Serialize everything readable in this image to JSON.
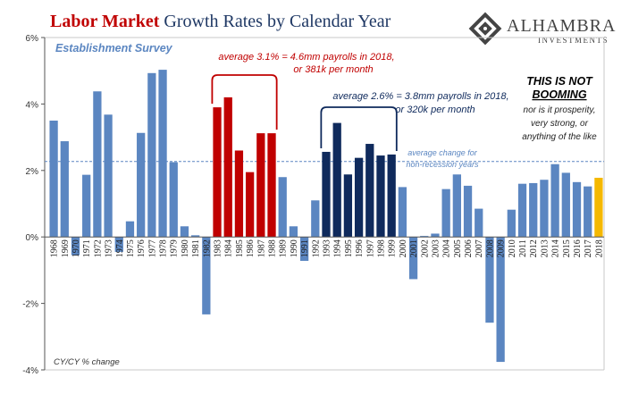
{
  "title": {
    "part1": "Labor Market",
    "part2": " Growth Rates by Calendar Year"
  },
  "logo": {
    "name": "ALHAMBRA",
    "tagline": "INVESTMENTS"
  },
  "subtitle": "Establishment Survey",
  "footnote": "CY/CY % change",
  "annotations": {
    "red_line1": "average 3.1% = 4.6mm payrolls in 2018,",
    "red_line2": "or 381k per month",
    "blue_line1": "average 2.6% = 3.8mm payrolls in 2018,",
    "blue_line2": "or 320k per month",
    "avg_line1": "average change for",
    "avg_line2": "non-recession years",
    "booming1": "THIS IS NOT",
    "booming2": "BOOMING",
    "booming3": "nor is it prosperity,",
    "booming4": "very strong, or",
    "booming5": "anything of the like"
  },
  "colors": {
    "default": "#5b86c1",
    "red": "#c00000",
    "navy": "#0f2a5c",
    "current": "#f5b800",
    "avg_line": "#5b86c1",
    "bracket_red": "#c00000",
    "bracket_navy": "#0f2a5c"
  },
  "chart_data": {
    "type": "bar",
    "categories": [
      "1968",
      "1969",
      "1970",
      "1971",
      "1972",
      "1973",
      "1974",
      "1975",
      "1976",
      "1977",
      "1978",
      "1979",
      "1980",
      "1981",
      "1982",
      "1983",
      "1984",
      "1985",
      "1986",
      "1987",
      "1988",
      "1989",
      "1990",
      "1991",
      "1992",
      "1993",
      "1994",
      "1995",
      "1996",
      "1997",
      "1998",
      "1999",
      "2000",
      "2001",
      "2002",
      "2003",
      "2004",
      "2005",
      "2006",
      "2007",
      "2008",
      "2009",
      "2010",
      "2011",
      "2012",
      "2013",
      "2014",
      "2015",
      "2016",
      "2017",
      "2018"
    ],
    "values": [
      3.5,
      2.88,
      -0.55,
      1.87,
      4.38,
      3.68,
      -0.45,
      0.47,
      3.13,
      4.93,
      5.03,
      2.25,
      0.32,
      0.05,
      -2.33,
      3.9,
      4.2,
      2.6,
      1.95,
      3.12,
      3.12,
      1.8,
      0.32,
      -0.72,
      1.1,
      2.56,
      3.43,
      1.88,
      2.38,
      2.8,
      2.45,
      2.48,
      1.5,
      -1.27,
      0.03,
      0.1,
      1.44,
      1.88,
      1.54,
      0.85,
      -2.58,
      -3.76,
      0.82,
      1.6,
      1.62,
      1.72,
      2.19,
      1.93,
      1.65,
      1.52,
      1.78
    ],
    "highlight_red": [
      "1983",
      "1984",
      "1985",
      "1986",
      "1987",
      "1988"
    ],
    "highlight_navy": [
      "1993",
      "1994",
      "1995",
      "1996",
      "1997",
      "1998",
      "1999"
    ],
    "highlight_current": [
      "2018"
    ],
    "reference_line": 2.27,
    "ylim": [
      -4,
      6
    ],
    "yticks": [
      -4,
      -2,
      0,
      2,
      4,
      6
    ],
    "ytick_labels": [
      "-4%",
      "-2%",
      "0%",
      "2%",
      "4%",
      "6%"
    ],
    "xlabel": "",
    "ylabel": "",
    "grid": false
  }
}
